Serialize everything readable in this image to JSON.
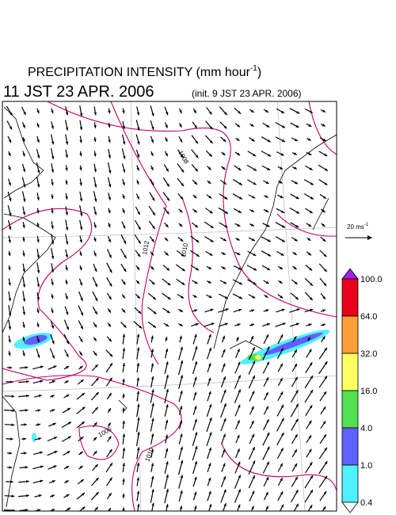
{
  "header": {
    "title": "PRECIPITATION INTENSITY (mm hour",
    "title_sup": "-1",
    "title_end": ")",
    "valid_time": "11 JST 23 APR. 2006",
    "init_time": "(init. 9 JST 23 APR. 2006)"
  },
  "wind_reference": {
    "label": "20 ms",
    "sup": "-1"
  },
  "colorbar": {
    "labels": [
      "100.0",
      "64.0",
      "32.0",
      "16.0",
      "4.0",
      "1.0",
      "0.4"
    ],
    "colors": [
      "#a020f0",
      "#e8001a",
      "#ff9f3a",
      "#ffff60",
      "#50e050",
      "#6060ff",
      "#50f0ff",
      "#ffffff"
    ]
  },
  "contour_labels": [
    "1008",
    "1012",
    "1010",
    "1006",
    "1010"
  ]
}
